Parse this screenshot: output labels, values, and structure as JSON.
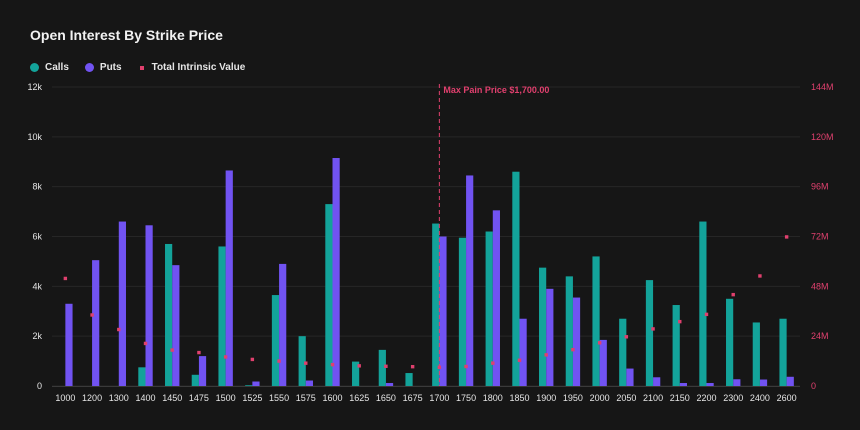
{
  "chart_data": {
    "type": "bar",
    "title": "Open Interest By Strike Price",
    "categories": [
      "1000",
      "1200",
      "1300",
      "1400",
      "1450",
      "1475",
      "1500",
      "1525",
      "1550",
      "1575",
      "1600",
      "1625",
      "1650",
      "1675",
      "1700",
      "1750",
      "1800",
      "1850",
      "1900",
      "1950",
      "2000",
      "2050",
      "2100",
      "2150",
      "2200",
      "2300",
      "2400",
      "2600"
    ],
    "series": [
      {
        "name": "Calls",
        "color": "#13a39a",
        "values": [
          0,
          0,
          0,
          750,
          5700,
          450,
          5600,
          30,
          3650,
          2000,
          7300,
          980,
          1450,
          520,
          6520,
          5950,
          6200,
          8600,
          4750,
          4400,
          5200,
          2700,
          4250,
          3250,
          6600,
          3500,
          2550,
          2700
        ]
      },
      {
        "name": "Puts",
        "color": "#7153f2",
        "values": [
          3300,
          5050,
          6600,
          6450,
          4850,
          1200,
          8650,
          180,
          4900,
          220,
          9150,
          0,
          120,
          0,
          6000,
          8450,
          7050,
          2700,
          3900,
          3550,
          1850,
          700,
          350,
          120,
          120,
          270,
          260,
          370
        ]
      },
      {
        "name": "Total Intrinsic Value",
        "color": "#e0406e",
        "type": "scatter",
        "axis": "right",
        "values": [
          51800000,
          34200000,
          27200000,
          20500000,
          17300000,
          16100000,
          14000000,
          12800000,
          12000000,
          11000000,
          10300000,
          9700000,
          9500000,
          9300000,
          9000000,
          9400000,
          11000000,
          12400000,
          15000000,
          17500000,
          20800000,
          23700000,
          27500000,
          31000000,
          34500000,
          44000000,
          53000000,
          71800000
        ]
      }
    ],
    "ylim": [
      0,
      12000
    ],
    "yticks": [
      0,
      2000,
      4000,
      6000,
      8000,
      10000,
      12000
    ],
    "ytick_labels": [
      "0",
      "2k",
      "4k",
      "6k",
      "8k",
      "10k",
      "12k"
    ],
    "y2lim": [
      0,
      144000000
    ],
    "y2ticks": [
      0,
      24000000,
      48000000,
      72000000,
      96000000,
      120000000,
      144000000
    ],
    "y2tick_labels": [
      "0",
      "24M",
      "48M",
      "72M",
      "96M",
      "120M",
      "144M"
    ],
    "annotation": {
      "label": "Max Pain Price $1,700.00",
      "category": "1700"
    },
    "legend": "top-left",
    "grid": true
  }
}
